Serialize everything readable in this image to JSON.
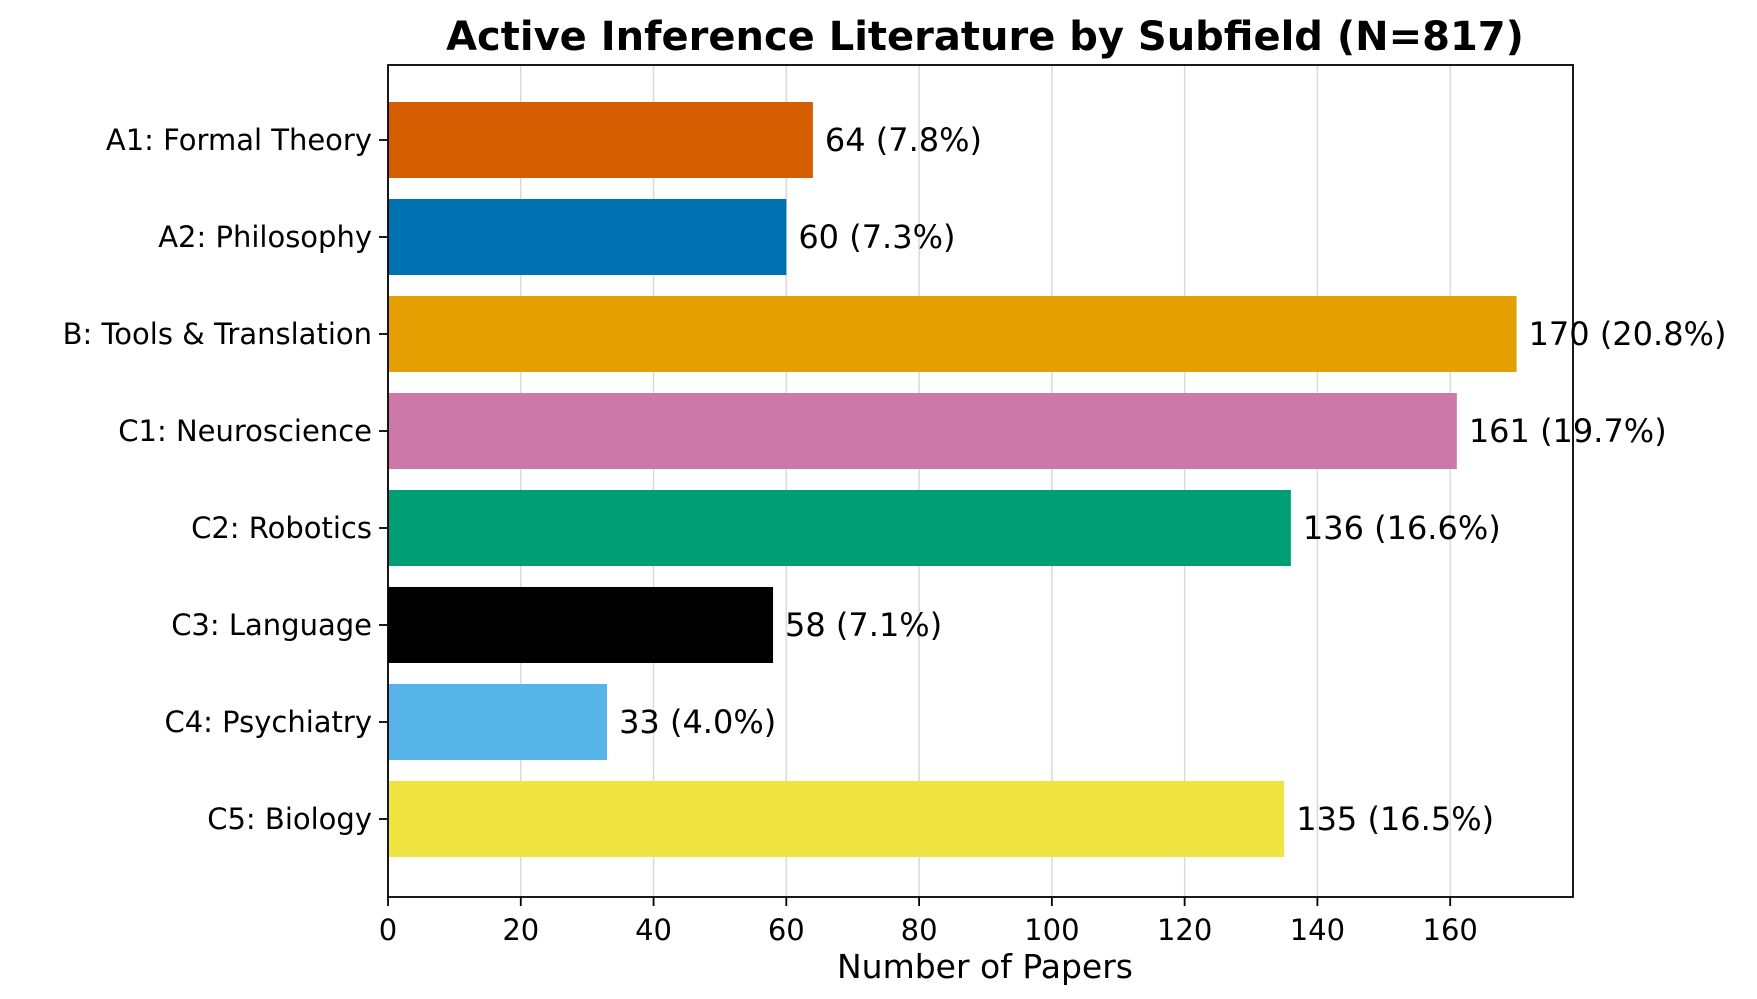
{
  "chart_data": {
    "type": "bar",
    "orientation": "horizontal",
    "title": "Active Inference Literature by Subfield (N=817)",
    "xlabel": "Number of Papers",
    "ylabel": "",
    "xlim": [
      0,
      178.5
    ],
    "xticks": [
      0,
      20,
      40,
      60,
      80,
      100,
      120,
      140,
      160
    ],
    "grid": "x",
    "categories": [
      "A1: Formal Theory",
      "A2: Philosophy",
      "B: Tools & Translation",
      "C1: Neuroscience",
      "C2: Robotics",
      "C3: Language",
      "C4: Psychiatry",
      "C5: Biology"
    ],
    "values": [
      64,
      60,
      170,
      161,
      136,
      58,
      33,
      135
    ],
    "data_labels": [
      "64 (7.8%)",
      "60 (7.3%)",
      "170 (20.8%)",
      "161 (19.7%)",
      "136 (16.6%)",
      "58 (7.1%)",
      "33 (4.0%)",
      "135 (16.5%)"
    ],
    "colors": [
      "#D55E00",
      "#0072B2",
      "#E69F00",
      "#CC79A7",
      "#009E73",
      "#000000",
      "#56B4E9",
      "#F0E442"
    ]
  }
}
